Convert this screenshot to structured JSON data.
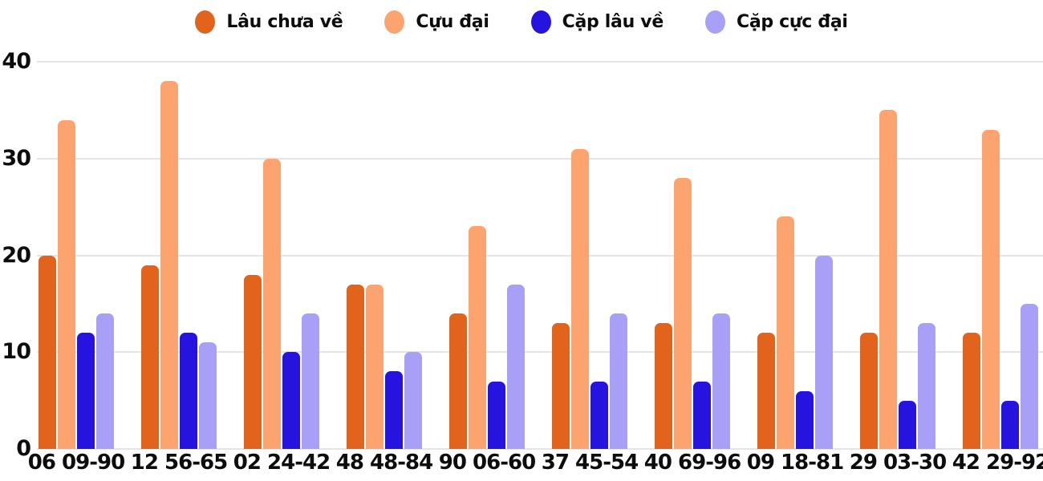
{
  "chart_data": {
    "type": "bar",
    "categories": [
      "06 09-90",
      "12 56-65",
      "02 24-42",
      "48 48-84",
      "90 06-60",
      "37 45-54",
      "40 69-96",
      "09 18-81",
      "29 03-30",
      "42 29-92"
    ],
    "series": [
      {
        "name": "Lâu chưa về",
        "color": "#e2631c",
        "values": [
          20,
          19,
          18,
          17,
          14,
          13,
          13,
          12,
          12,
          12
        ]
      },
      {
        "name": "Cựu đại",
        "color": "#fca470",
        "values": [
          34,
          38,
          30,
          17,
          23,
          31,
          28,
          24,
          35,
          33
        ]
      },
      {
        "name": "Cặp lâu về",
        "color": "#2613e0",
        "values": [
          12,
          12,
          10,
          8,
          7,
          7,
          7,
          6,
          5,
          5
        ]
      },
      {
        "name": "Cặp cực đại",
        "color": "#a89ff6",
        "values": [
          14,
          11,
          14,
          10,
          17,
          14,
          14,
          20,
          13,
          15
        ]
      }
    ],
    "yticks": [
      0,
      10,
      20,
      30,
      40
    ],
    "ylim": [
      0,
      40
    ],
    "grid": true,
    "legend_position": "top-center",
    "xlabel": "",
    "ylabel": "",
    "background_color": "#ffffff",
    "gridline_color": "#e4e4e4",
    "text_color": "#0d0d0d"
  }
}
